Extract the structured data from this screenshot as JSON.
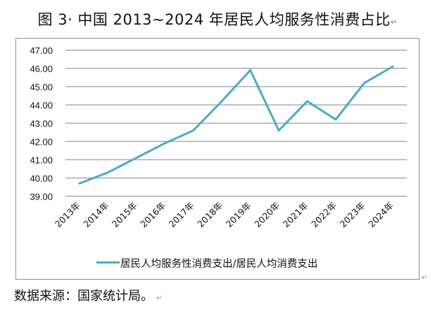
{
  "page": {
    "title": "图 3· 中国 2013~2024 年居民人均服务性消费占比",
    "paragraph_mark": "↵",
    "source": "数据来源：国家统计局。"
  },
  "chart_data": {
    "type": "line",
    "title": "图 3· 中国 2013~2024 年居民人均服务性消费占比",
    "xlabel": "",
    "ylabel": "",
    "categories": [
      "2013年",
      "2014年",
      "2015年",
      "2016年",
      "2017年",
      "2018年",
      "2019年",
      "2020年",
      "2021年",
      "2022年",
      "2023年",
      "2024年"
    ],
    "series": [
      {
        "name": "居民人均服务性消费支出/居民人均消费支出",
        "color": "#4BACC6",
        "values": [
          39.7,
          40.3,
          41.1,
          41.9,
          42.6,
          44.2,
          45.9,
          42.6,
          44.2,
          43.2,
          45.2,
          46.1
        ]
      }
    ],
    "ylim": [
      39,
      47
    ],
    "yticks": [
      "39.00",
      "40.00",
      "41.00",
      "42.00",
      "43.00",
      "44.00",
      "45.00",
      "46.00",
      "47.00"
    ],
    "grid": true,
    "legend_position": "bottom"
  },
  "legend": {
    "label": "居民人均服务性消费支出/居民人均消费支出",
    "color": "#4BACC6"
  }
}
